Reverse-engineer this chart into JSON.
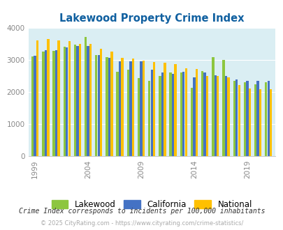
{
  "title": "Lakewood Property Crime Index",
  "title_color": "#1060a0",
  "years": [
    1999,
    2000,
    2001,
    2002,
    2003,
    2004,
    2005,
    2006,
    2007,
    2008,
    2009,
    2010,
    2011,
    2012,
    2013,
    2014,
    2015,
    2016,
    2017,
    2018,
    2019,
    2020,
    2021
  ],
  "lakewood": [
    3100,
    3250,
    3280,
    3400,
    3480,
    3700,
    3150,
    3080,
    2630,
    2700,
    2440,
    2350,
    2500,
    2600,
    2600,
    2120,
    2650,
    3080,
    3000,
    2350,
    2300,
    2230,
    2300
  ],
  "california": [
    3120,
    3300,
    3290,
    3390,
    3430,
    3430,
    3150,
    3050,
    2960,
    2960,
    2960,
    2700,
    2600,
    2560,
    2620,
    2460,
    2600,
    2520,
    2500,
    2380,
    2350,
    2340,
    2340
  ],
  "national": [
    3600,
    3640,
    3600,
    3580,
    3500,
    3490,
    3340,
    3260,
    3060,
    3040,
    2970,
    2940,
    2900,
    2870,
    2730,
    2720,
    2500,
    2500,
    2460,
    2210,
    2100,
    2080,
    2080
  ],
  "bar_colors": [
    "#8dc63f",
    "#4472c4",
    "#ffc000"
  ],
  "bg_color": "#daeef3",
  "ylim": [
    0,
    4000
  ],
  "yticks": [
    0,
    1000,
    2000,
    3000,
    4000
  ],
  "xlabel_ticks": [
    1999,
    2004,
    2009,
    2014,
    2019
  ],
  "legend_labels": [
    "Lakewood",
    "California",
    "National"
  ],
  "footnote1": "Crime Index corresponds to incidents per 100,000 inhabitants",
  "footnote2": "© 2025 CityRating.com - https://www.cityrating.com/crime-statistics/",
  "footnote1_color": "#333333",
  "footnote2_color": "#aaaaaa"
}
